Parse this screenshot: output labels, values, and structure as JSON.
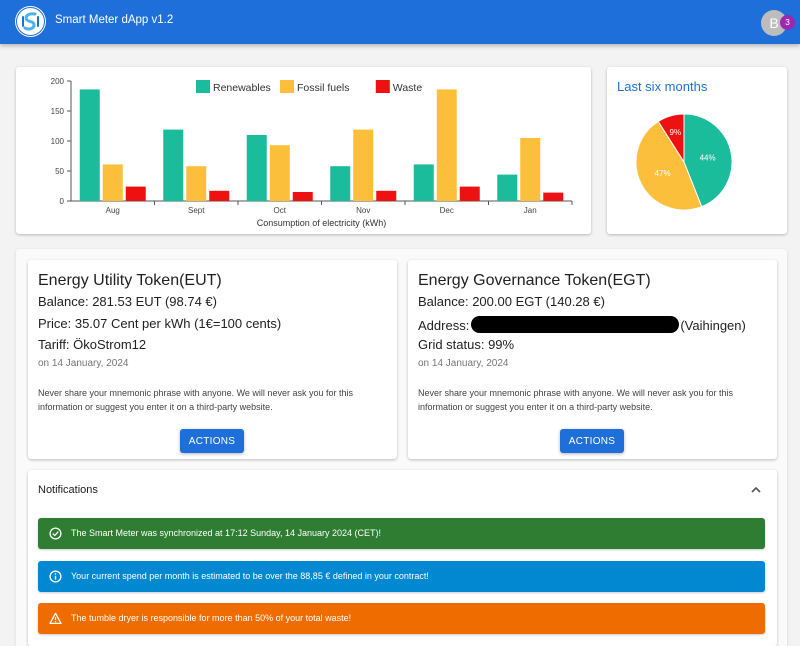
{
  "app": {
    "title": "Smart Meter dApp v1.2",
    "avatar_initial": "B",
    "notification_count": "3"
  },
  "bar_chart": {
    "chart_data": {
      "type": "bar",
      "categories": [
        "Aug",
        "Sept",
        "Oct",
        "Nov",
        "Dec",
        "Jan"
      ],
      "series": [
        {
          "name": "Renewables",
          "color": "#1abc9c",
          "values": [
            186,
            119,
            110,
            58,
            61,
            44
          ]
        },
        {
          "name": "Fossil fuels",
          "color": "#fbbf3b",
          "values": [
            61,
            58,
            93,
            119,
            186,
            105
          ]
        },
        {
          "name": "Waste",
          "color": "#ee1111",
          "values": [
            24,
            17,
            15,
            17,
            24,
            14
          ]
        }
      ],
      "xlabel": "Consumption of electricity (kWh)",
      "ylabel": "",
      "ylim": [
        0,
        200
      ],
      "yticks": [
        0,
        50,
        100,
        150,
        200
      ],
      "legend": "top-center",
      "grid": false
    }
  },
  "pie_chart": {
    "title": "Last six months",
    "chart_data": {
      "type": "pie",
      "labels": [
        "Renewables",
        "Fossil fuels",
        "Waste"
      ],
      "values": [
        44,
        47,
        9
      ],
      "value_labels": [
        "44%",
        "47%",
        "9%"
      ],
      "colors": [
        "#1abc9c",
        "#fbbf3b",
        "#ee1111"
      ]
    }
  },
  "eut": {
    "title": "Energy Utility Token(EUT)",
    "balance": "Balance: 281.53 EUT (98.74 €)",
    "price": "Price: 35.07 Cent per kWh (1€=100 cents)",
    "tariff": "Tariff: ÖkoStrom12",
    "date": "on 14 January, 2024",
    "note": "Never share your mnemonic phrase with anyone. We will never ask you for this information or suggest you enter it on a third-party website.",
    "action_label": "ACTIONS"
  },
  "egt": {
    "title": "Energy Governance Token(EGT)",
    "balance": "Balance: 200.00 EGT (140.28 €)",
    "address_label": "Address:",
    "address_suffix": "(Vaihingen)",
    "grid_status": "Grid status: 99%",
    "date": "on 14 January, 2024",
    "note": "Never share your mnemonic phrase with anyone. We will never ask you for this information or suggest you enter it on a third-party website.",
    "action_label": "ACTIONS"
  },
  "notifications": {
    "title": "Notifications",
    "items": [
      {
        "type": "success",
        "icon": "check-circle-icon",
        "text": "The Smart Meter was synchronized at 17:12 Sunday, 14 January 2024 (CET)!"
      },
      {
        "type": "info",
        "icon": "info-icon",
        "text": "Your current spend per month is estimated to be over the 88,85 € defined in your contract!"
      },
      {
        "type": "warning",
        "icon": "warning-icon",
        "text": "The tumble dryer is responsible for more than 50% of your total waste!"
      }
    ]
  }
}
